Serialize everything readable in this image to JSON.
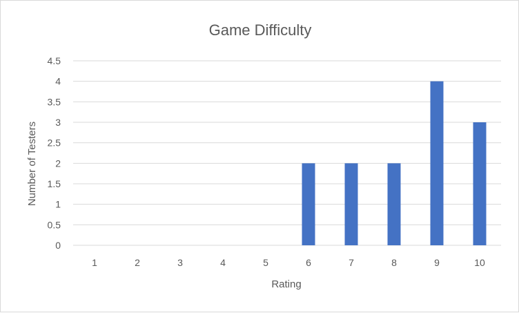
{
  "chart_data": {
    "type": "bar",
    "title": "Game Difficulty",
    "xlabel": "Rating",
    "ylabel": "Number of Testers",
    "categories": [
      "1",
      "2",
      "3",
      "4",
      "5",
      "6",
      "7",
      "8",
      "9",
      "10"
    ],
    "values": [
      0,
      0,
      0,
      0,
      0,
      2,
      2,
      2,
      4,
      3
    ],
    "ylim": [
      0,
      4.5
    ],
    "yticks": [
      "0",
      "0.5",
      "1",
      "1.5",
      "2",
      "2.5",
      "3",
      "3.5",
      "4",
      "4.5"
    ],
    "grid": true,
    "legend": "none",
    "colors": {
      "bar": "#4472c4",
      "grid": "#d9d9d9",
      "text": "#595959"
    }
  }
}
